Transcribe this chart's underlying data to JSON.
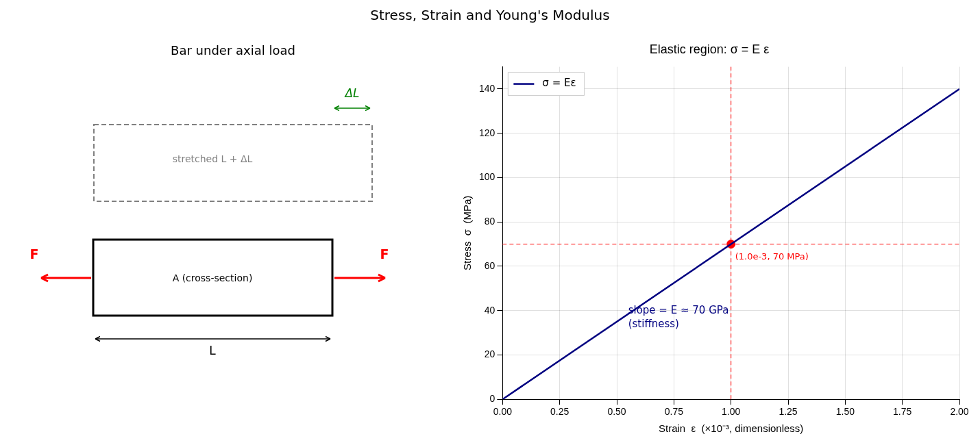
{
  "chart_data": [
    {
      "type": "other",
      "title": "Stress, Strain and Young's Modulus",
      "subtitle": "Bar under axial load",
      "annotations": [
        "ΔL",
        "stretched L + ΔL",
        "F",
        "F",
        "A (cross-section)",
        "L"
      ]
    },
    {
      "type": "line",
      "title": "Elastic region: σ = E ε",
      "xlabel": "Strain  ε  (×10⁻³, dimensionless)",
      "ylabel": "Stress  σ  (MPa)",
      "series": [
        {
          "name": "σ = Eε",
          "color": "#000080",
          "x": [
            0,
            2
          ],
          "values": [
            0,
            140
          ]
        },
        {
          "type": "scatter",
          "color": "#ff0000",
          "x": [
            1
          ],
          "values": [
            70
          ]
        }
      ],
      "xlim": [
        0,
        2
      ],
      "ylim": [
        0,
        150
      ],
      "xticks": [
        {
          "value": 0,
          "label": "0.00"
        },
        0.25,
        {
          "value": 0.5,
          "label": "0.50"
        },
        0.75,
        {
          "value": 1,
          "label": "1.00"
        },
        1.25,
        {
          "value": 1.5,
          "label": "1.50"
        },
        1.75,
        {
          "value": 2,
          "label": "2.00"
        }
      ],
      "yticks": [
        0,
        20,
        40,
        60,
        80,
        100,
        120,
        140
      ],
      "ref_lines": [
        {
          "axis": "x",
          "value": 1,
          "color": "#ff0000",
          "line_style": "dashed"
        },
        {
          "axis": "y",
          "value": 70,
          "color": "#ff0000",
          "line_style": "dashed"
        }
      ],
      "annotations": [
        {
          "text": "(1.0e-3, 70 MPa)",
          "x": 1,
          "y": 70
        },
        "slope = E ≈ 70 GPa\n(stiffness)"
      ],
      "grid": true,
      "legend": "top left",
      "line_style": "solid"
    }
  ]
}
